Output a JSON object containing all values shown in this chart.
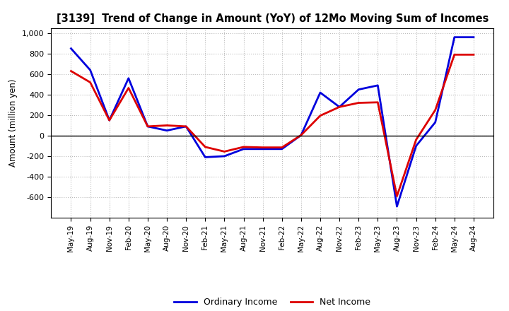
{
  "title": "[3139]  Trend of Change in Amount (YoY) of 12Mo Moving Sum of Incomes",
  "ylabel": "Amount (million yen)",
  "background_color": "#ffffff",
  "plot_bg_color": "#ffffff",
  "grid_color": "#bbbbbb",
  "x_labels": [
    "May-19",
    "Aug-19",
    "Nov-19",
    "Feb-20",
    "May-20",
    "Aug-20",
    "Nov-20",
    "Feb-21",
    "May-21",
    "Aug-21",
    "Nov-21",
    "Feb-22",
    "May-22",
    "Aug-22",
    "Nov-22",
    "Feb-23",
    "May-23",
    "Aug-23",
    "Nov-23",
    "Feb-24",
    "May-24",
    "Aug-24"
  ],
  "ordinary_income": [
    850,
    640,
    150,
    560,
    90,
    50,
    90,
    -210,
    -200,
    -130,
    -130,
    -130,
    5,
    420,
    280,
    450,
    490,
    -690,
    -100,
    130,
    960,
    960
  ],
  "net_income": [
    630,
    520,
    150,
    465,
    90,
    100,
    90,
    -110,
    -155,
    -110,
    -115,
    -115,
    5,
    195,
    280,
    320,
    325,
    -590,
    -40,
    250,
    790,
    790
  ],
  "ordinary_color": "#0000dd",
  "net_color": "#dd0000",
  "ylim": [
    -800,
    1050
  ],
  "yticks": [
    -600,
    -400,
    -200,
    0,
    200,
    400,
    600,
    800,
    1000
  ],
  "line_width": 2.0,
  "legend_labels": [
    "Ordinary Income",
    "Net Income"
  ]
}
